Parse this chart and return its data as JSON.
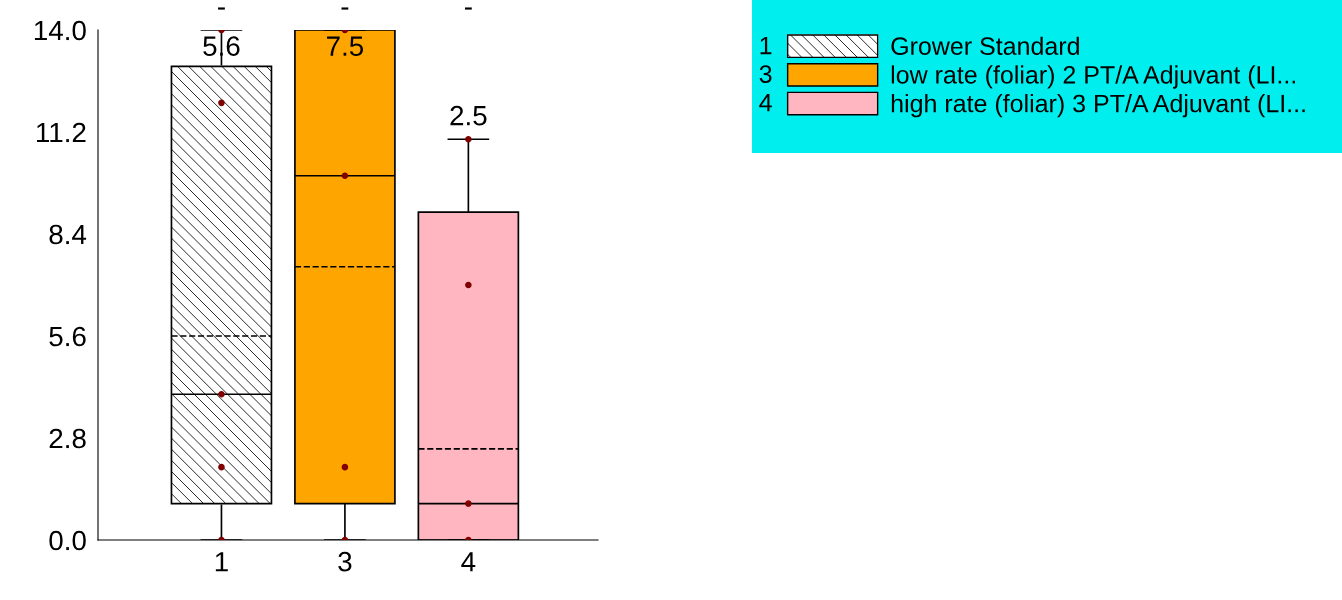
{
  "chart_data": {
    "type": "box",
    "categories": [
      "1",
      "3",
      "4"
    ],
    "series": [
      {
        "name": "Grower Standard",
        "color": "#ffffff",
        "boxes": [
          {
            "low": 0,
            "q1": 1.0,
            "median": 4.0,
            "q3": 13.0,
            "high": 14.0,
            "mean": 5.6
          },
          null,
          null
        ],
        "value_labels": [
          "5.6",
          null,
          null
        ]
      },
      {
        "name": "low rate (foliar) 2 PT/A Adjuvant (LI...",
        "color": "#ffa500",
        "boxes": [
          null,
          {
            "low": 0,
            "q1": 1.0,
            "median": 10.0,
            "q3": 14.0,
            "high": 14.0,
            "mean": 7.5
          },
          null
        ],
        "value_labels": [
          null,
          "7.5",
          null
        ]
      },
      {
        "name": "high rate (foliar) 3 PT/A Adjuvant (LI...",
        "color": "#ffb6c1",
        "boxes": [
          null,
          null,
          {
            "low": 0,
            "q1": 0,
            "median": 1.0,
            "q3": 9.0,
            "high": 11.0,
            "mean": 2.5
          }
        ],
        "value_labels": [
          null,
          null,
          "2.5"
        ]
      },
      {
        "type": "scatter",
        "color": "#800000",
        "x": [
          "1",
          "1",
          "1",
          "1",
          "1",
          "3",
          "3",
          "3",
          "3",
          "4",
          "4",
          "4",
          "4"
        ],
        "values": [
          14,
          12,
          4,
          2,
          0,
          14,
          10,
          2,
          0,
          11,
          7,
          1,
          0
        ]
      }
    ],
    "ylim": [
      0,
      14
    ],
    "yticks": [
      {
        "value": 0,
        "label": "0.0"
      },
      2.8,
      5.6,
      8.4,
      11.2,
      {
        "value": 14,
        "label": "14.0"
      }
    ],
    "annotations": [
      "-",
      "-",
      "-"
    ],
    "marker": "circle",
    "grid": false,
    "legend": "top right"
  }
}
